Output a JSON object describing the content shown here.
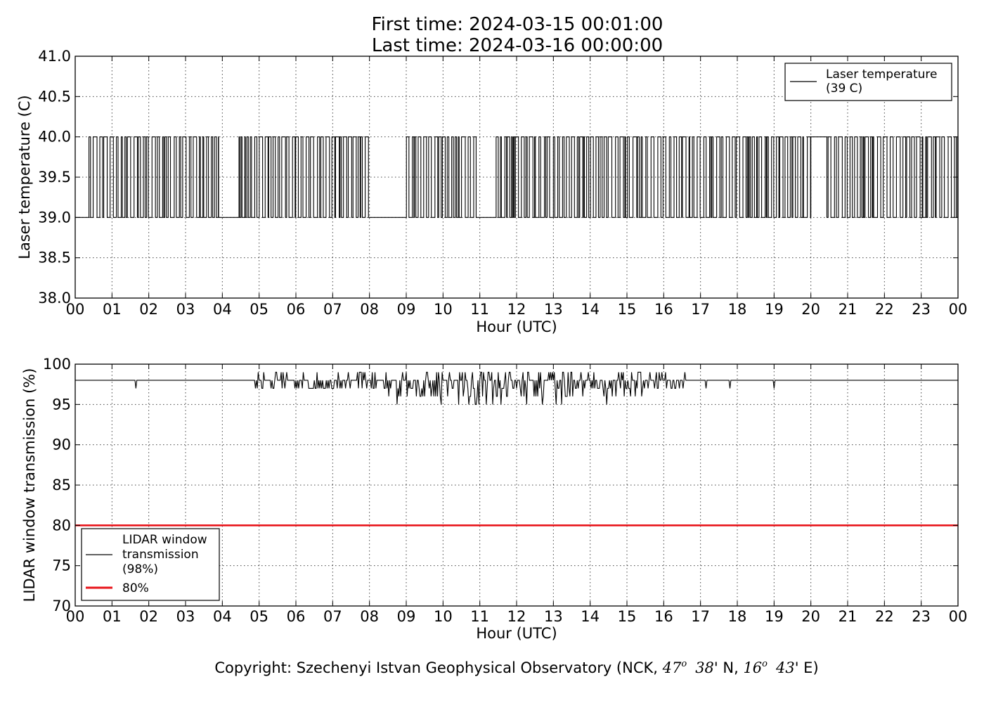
{
  "header": {
    "first_time": "First time: 2024-03-15 00:01:00",
    "last_time": "Last time: 2024-03-16 00:00:00"
  },
  "chart_data": [
    {
      "type": "line",
      "title": "",
      "xlabel": "Hour (UTC)",
      "ylabel": "Laser temperature (C)",
      "xlim": [
        0,
        24
      ],
      "ylim": [
        38.0,
        41.0
      ],
      "x_tick_labels": [
        "00",
        "01",
        "02",
        "03",
        "04",
        "05",
        "06",
        "07",
        "08",
        "09",
        "10",
        "11",
        "12",
        "13",
        "14",
        "15",
        "16",
        "17",
        "18",
        "19",
        "20",
        "21",
        "22",
        "23",
        "00"
      ],
      "y_tick_labels": [
        "38.0",
        "38.5",
        "39.0",
        "39.5",
        "40.0",
        "40.5",
        "41.0"
      ],
      "y_ticks": [
        38.0,
        38.5,
        39.0,
        39.5,
        40.0,
        40.5,
        41.0
      ],
      "grid": true,
      "legend_position": "upper right",
      "series": [
        {
          "name": "Laser temperature (39 C)",
          "legend_lines": [
            "Laser temperature",
            "(39 C)"
          ],
          "color": "#000000",
          "description_values": [
            39.0,
            40.0
          ],
          "segments": [
            {
              "x": [
                0.0,
                0.3
              ],
              "y": 39.0
            },
            {
              "x": [
                0.3,
                3.9
              ],
              "mode": "alternating",
              "low": 39.0,
              "high": 40.0
            },
            {
              "x": [
                3.9,
                4.4
              ],
              "y": 39.0
            },
            {
              "x": [
                4.4,
                8.05
              ],
              "mode": "alternating",
              "low": 39.0,
              "high": 40.0
            },
            {
              "x": [
                8.05,
                8.9
              ],
              "y": 39.0
            },
            {
              "x": [
                8.9,
                10.9
              ],
              "mode": "alternating",
              "low": 39.0,
              "high": 40.0
            },
            {
              "x": [
                10.9,
                11.4
              ],
              "y": 39.0
            },
            {
              "x": [
                11.4,
                20.0
              ],
              "mode": "alternating",
              "low": 39.0,
              "high": 40.0
            },
            {
              "x": [
                20.0,
                20.4
              ],
              "y": 40.0
            },
            {
              "x": [
                20.4,
                24.0
              ],
              "mode": "alternating",
              "low": 39.0,
              "high": 40.0
            }
          ]
        }
      ]
    },
    {
      "type": "line",
      "title": "",
      "xlabel": "Hour (UTC)",
      "ylabel": "LIDAR window transmission (%)",
      "xlim": [
        0,
        24
      ],
      "ylim": [
        70,
        100
      ],
      "x_tick_labels": [
        "00",
        "01",
        "02",
        "03",
        "04",
        "05",
        "06",
        "07",
        "08",
        "09",
        "10",
        "11",
        "12",
        "13",
        "14",
        "15",
        "16",
        "17",
        "18",
        "19",
        "20",
        "21",
        "22",
        "23",
        "00"
      ],
      "y_tick_labels": [
        "70",
        "75",
        "80",
        "85",
        "90",
        "95",
        "100"
      ],
      "y_ticks": [
        70,
        75,
        80,
        85,
        90,
        95,
        100
      ],
      "grid": true,
      "legend_position": "lower left",
      "series": [
        {
          "name": "LIDAR window transmission (98%)",
          "legend_lines": [
            "LIDAR window",
            "transmission",
            "(98%)"
          ],
          "color": "#000000",
          "baseline": 98,
          "noisy_range": [
            4.85,
            16.6
          ],
          "noise_values": [
            95,
            96,
            97,
            98,
            99
          ],
          "dips": [
            {
              "x": 1.65,
              "y": 97
            },
            {
              "x": 17.8,
              "y": 97
            },
            {
              "x": 19.0,
              "y": 97
            },
            {
              "x": 17.15,
              "y": 97
            }
          ]
        },
        {
          "name": "80%",
          "legend_lines": [
            "80%"
          ],
          "color": "#e8151b",
          "values": [
            80,
            80
          ],
          "x": [
            0,
            24
          ]
        }
      ]
    }
  ],
  "footer": {
    "copyright_prefix": "Copyright: Szechenyi Istvan Geophysical Observatory (NCK, ",
    "lat_deg": "47",
    "lat_min": "38",
    "lat_suffix": "' N, ",
    "lon_deg": "16",
    "lon_min": "43",
    "lon_suffix": "' E)",
    "degree_symbol": "o"
  }
}
